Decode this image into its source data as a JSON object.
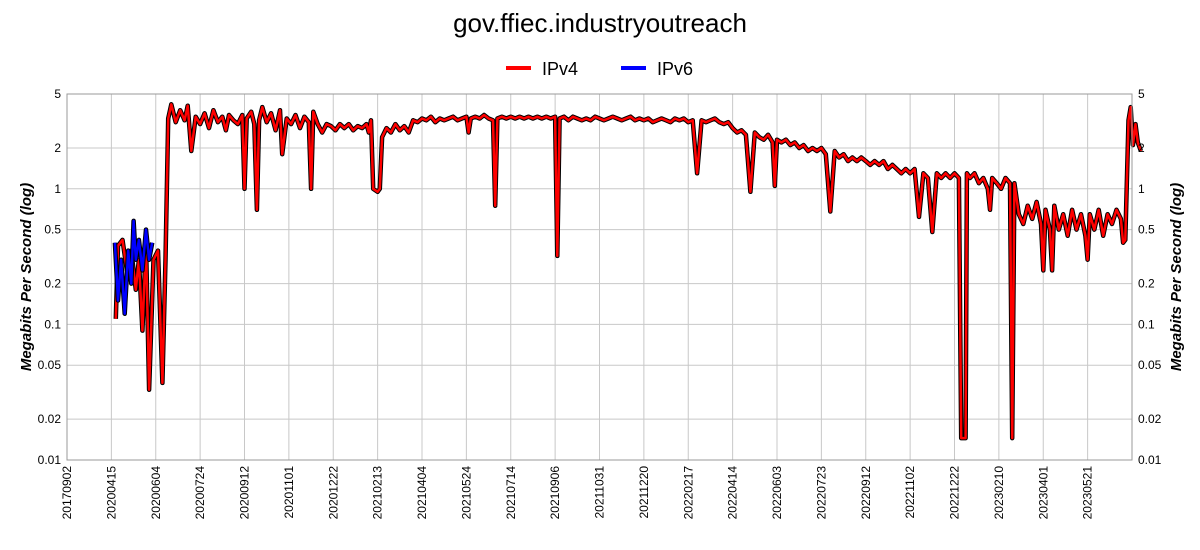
{
  "chart_data": {
    "type": "line",
    "title": "gov.ffiec.industryoutreach",
    "ylabel": "Megabits Per Second (log)",
    "yscale": "log",
    "ylim": [
      0.01,
      5
    ],
    "yticks": [
      5,
      2,
      1,
      0.5,
      0.2,
      0.1,
      0.05,
      0.02,
      0.01
    ],
    "ytick_labels": [
      "5",
      "2",
      "1",
      "0.5",
      "0.2",
      "0.1",
      "0.05",
      "0.02",
      "0.01"
    ],
    "xticks": [
      "20170902",
      "20200415",
      "20200604",
      "20200724",
      "20200912",
      "20201101",
      "20201222",
      "20210213",
      "20210404",
      "20210524",
      "20210714",
      "20210906",
      "20211031",
      "20211220",
      "20220217",
      "20220414",
      "20220603",
      "20220723",
      "20220912",
      "20221102",
      "20221222",
      "20230210",
      "20230401",
      "20230521"
    ],
    "grid": true,
    "legend": "top-center",
    "series": [
      {
        "name": "IPv4",
        "color": "#ff0000",
        "points": [
          [
            1.1,
            0.11
          ],
          [
            1.15,
            0.38
          ],
          [
            1.25,
            0.42
          ],
          [
            1.35,
            0.25
          ],
          [
            1.45,
            0.35
          ],
          [
            1.55,
            0.18
          ],
          [
            1.62,
            0.3
          ],
          [
            1.7,
            0.09
          ],
          [
            1.78,
            0.4
          ],
          [
            1.85,
            0.033
          ],
          [
            1.95,
            0.3
          ],
          [
            2.05,
            0.35
          ],
          [
            2.15,
            0.037
          ],
          [
            2.22,
            0.3
          ],
          [
            2.28,
            3.3
          ],
          [
            2.35,
            4.2
          ],
          [
            2.45,
            3.1
          ],
          [
            2.55,
            3.8
          ],
          [
            2.65,
            3.2
          ],
          [
            2.72,
            4.1
          ],
          [
            2.8,
            1.9
          ],
          [
            2.9,
            3.4
          ],
          [
            3.0,
            3.0
          ],
          [
            3.1,
            3.6
          ],
          [
            3.2,
            2.8
          ],
          [
            3.3,
            3.8
          ],
          [
            3.4,
            3.1
          ],
          [
            3.5,
            3.4
          ],
          [
            3.58,
            2.7
          ],
          [
            3.65,
            3.5
          ],
          [
            3.75,
            3.2
          ],
          [
            3.85,
            3.0
          ],
          [
            3.95,
            3.5
          ],
          [
            4.0,
            1.0
          ],
          [
            4.05,
            3.3
          ],
          [
            4.15,
            3.7
          ],
          [
            4.22,
            3.0
          ],
          [
            4.28,
            0.7
          ],
          [
            4.33,
            3.2
          ],
          [
            4.4,
            4.0
          ],
          [
            4.5,
            3.1
          ],
          [
            4.6,
            3.6
          ],
          [
            4.7,
            2.7
          ],
          [
            4.8,
            3.8
          ],
          [
            4.85,
            1.8
          ],
          [
            4.95,
            3.3
          ],
          [
            5.05,
            3.0
          ],
          [
            5.15,
            3.5
          ],
          [
            5.25,
            2.8
          ],
          [
            5.35,
            3.4
          ],
          [
            5.45,
            3.1
          ],
          [
            5.5,
            1.0
          ],
          [
            5.55,
            3.7
          ],
          [
            5.65,
            3.0
          ],
          [
            5.75,
            2.6
          ],
          [
            5.85,
            3.0
          ],
          [
            5.95,
            2.9
          ],
          [
            6.05,
            2.7
          ],
          [
            6.15,
            3.0
          ],
          [
            6.25,
            2.8
          ],
          [
            6.35,
            3.0
          ],
          [
            6.45,
            2.7
          ],
          [
            6.55,
            2.9
          ],
          [
            6.65,
            2.8
          ],
          [
            6.75,
            3.0
          ],
          [
            6.8,
            2.6
          ],
          [
            6.85,
            3.2
          ],
          [
            6.9,
            1.0
          ],
          [
            7.0,
            0.95
          ],
          [
            7.05,
            1.0
          ],
          [
            7.1,
            2.4
          ],
          [
            7.2,
            2.8
          ],
          [
            7.3,
            2.6
          ],
          [
            7.4,
            3.0
          ],
          [
            7.5,
            2.7
          ],
          [
            7.6,
            2.9
          ],
          [
            7.7,
            2.6
          ],
          [
            7.8,
            3.2
          ],
          [
            7.9,
            3.1
          ],
          [
            8.0,
            3.3
          ],
          [
            8.1,
            3.2
          ],
          [
            8.2,
            3.4
          ],
          [
            8.3,
            3.1
          ],
          [
            8.4,
            3.3
          ],
          [
            8.5,
            3.2
          ],
          [
            8.6,
            3.3
          ],
          [
            8.7,
            3.4
          ],
          [
            8.8,
            3.2
          ],
          [
            8.9,
            3.3
          ],
          [
            9.0,
            3.4
          ],
          [
            9.05,
            2.6
          ],
          [
            9.1,
            3.3
          ],
          [
            9.2,
            3.4
          ],
          [
            9.3,
            3.3
          ],
          [
            9.4,
            3.5
          ],
          [
            9.5,
            3.3
          ],
          [
            9.6,
            3.2
          ],
          [
            9.65,
            0.75
          ],
          [
            9.7,
            3.3
          ],
          [
            9.8,
            3.4
          ],
          [
            9.9,
            3.3
          ],
          [
            10.0,
            3.4
          ],
          [
            10.1,
            3.3
          ],
          [
            10.2,
            3.4
          ],
          [
            10.3,
            3.3
          ],
          [
            10.4,
            3.4
          ],
          [
            10.5,
            3.3
          ],
          [
            10.6,
            3.4
          ],
          [
            10.7,
            3.3
          ],
          [
            10.8,
            3.4
          ],
          [
            10.9,
            3.3
          ],
          [
            11.0,
            3.4
          ],
          [
            11.05,
            0.32
          ],
          [
            11.1,
            3.3
          ],
          [
            11.2,
            3.4
          ],
          [
            11.3,
            3.2
          ],
          [
            11.4,
            3.4
          ],
          [
            11.5,
            3.3
          ],
          [
            11.6,
            3.2
          ],
          [
            11.7,
            3.3
          ],
          [
            11.8,
            3.2
          ],
          [
            11.9,
            3.4
          ],
          [
            12.0,
            3.3
          ],
          [
            12.1,
            3.2
          ],
          [
            12.2,
            3.3
          ],
          [
            12.3,
            3.4
          ],
          [
            12.4,
            3.3
          ],
          [
            12.5,
            3.2
          ],
          [
            12.6,
            3.3
          ],
          [
            12.7,
            3.4
          ],
          [
            12.8,
            3.2
          ],
          [
            12.9,
            3.3
          ],
          [
            13.0,
            3.2
          ],
          [
            13.1,
            3.3
          ],
          [
            13.2,
            3.1
          ],
          [
            13.3,
            3.2
          ],
          [
            13.4,
            3.3
          ],
          [
            13.5,
            3.2
          ],
          [
            13.6,
            3.1
          ],
          [
            13.7,
            3.3
          ],
          [
            13.8,
            3.2
          ],
          [
            13.9,
            3.3
          ],
          [
            14.0,
            3.1
          ],
          [
            14.1,
            3.2
          ],
          [
            14.2,
            1.3
          ],
          [
            14.3,
            3.2
          ],
          [
            14.4,
            3.1
          ],
          [
            14.5,
            3.2
          ],
          [
            14.6,
            3.3
          ],
          [
            14.7,
            3.1
          ],
          [
            14.8,
            3.0
          ],
          [
            14.9,
            3.1
          ],
          [
            15.0,
            2.8
          ],
          [
            15.1,
            2.6
          ],
          [
            15.2,
            2.7
          ],
          [
            15.3,
            2.5
          ],
          [
            15.4,
            0.95
          ],
          [
            15.5,
            2.6
          ],
          [
            15.6,
            2.4
          ],
          [
            15.7,
            2.3
          ],
          [
            15.8,
            2.5
          ],
          [
            15.9,
            2.2
          ],
          [
            15.95,
            1.05
          ],
          [
            16.0,
            2.3
          ],
          [
            16.1,
            2.2
          ],
          [
            16.2,
            2.3
          ],
          [
            16.3,
            2.1
          ],
          [
            16.4,
            2.2
          ],
          [
            16.5,
            2.0
          ],
          [
            16.6,
            2.1
          ],
          [
            16.7,
            1.9
          ],
          [
            16.8,
            2.0
          ],
          [
            16.9,
            1.9
          ],
          [
            17.0,
            2.0
          ],
          [
            17.1,
            1.8
          ],
          [
            17.2,
            0.68
          ],
          [
            17.3,
            1.9
          ],
          [
            17.4,
            1.7
          ],
          [
            17.5,
            1.8
          ],
          [
            17.6,
            1.6
          ],
          [
            17.7,
            1.7
          ],
          [
            17.8,
            1.6
          ],
          [
            17.9,
            1.7
          ],
          [
            18.0,
            1.6
          ],
          [
            18.1,
            1.5
          ],
          [
            18.2,
            1.6
          ],
          [
            18.3,
            1.5
          ],
          [
            18.4,
            1.6
          ],
          [
            18.5,
            1.4
          ],
          [
            18.6,
            1.5
          ],
          [
            18.7,
            1.4
          ],
          [
            18.8,
            1.3
          ],
          [
            18.9,
            1.4
          ],
          [
            19.0,
            1.3
          ],
          [
            19.1,
            1.4
          ],
          [
            19.2,
            0.62
          ],
          [
            19.3,
            1.3
          ],
          [
            19.4,
            1.2
          ],
          [
            19.5,
            0.48
          ],
          [
            19.6,
            1.3
          ],
          [
            19.7,
            1.2
          ],
          [
            19.8,
            1.3
          ],
          [
            19.9,
            1.2
          ],
          [
            20.0,
            1.3
          ],
          [
            20.1,
            1.2
          ],
          [
            20.15,
            0.0145
          ],
          [
            20.2,
            0.0145
          ],
          [
            20.25,
            0.0145
          ],
          [
            20.28,
            1.3
          ],
          [
            20.35,
            1.2
          ],
          [
            20.45,
            1.3
          ],
          [
            20.55,
            1.1
          ],
          [
            20.65,
            1.2
          ],
          [
            20.75,
            1.0
          ],
          [
            20.8,
            0.7
          ],
          [
            20.85,
            1.2
          ],
          [
            20.95,
            1.1
          ],
          [
            21.05,
            1.0
          ],
          [
            21.15,
            1.2
          ],
          [
            21.25,
            1.1
          ],
          [
            21.3,
            0.0145
          ],
          [
            21.35,
            1.1
          ],
          [
            21.45,
            0.65
          ],
          [
            21.55,
            0.55
          ],
          [
            21.65,
            0.75
          ],
          [
            21.75,
            0.6
          ],
          [
            21.85,
            0.8
          ],
          [
            21.95,
            0.55
          ],
          [
            22.0,
            0.25
          ],
          [
            22.05,
            0.7
          ],
          [
            22.15,
            0.5
          ],
          [
            22.2,
            0.25
          ],
          [
            22.25,
            0.75
          ],
          [
            22.35,
            0.5
          ],
          [
            22.45,
            0.65
          ],
          [
            22.55,
            0.45
          ],
          [
            22.65,
            0.7
          ],
          [
            22.75,
            0.5
          ],
          [
            22.85,
            0.65
          ],
          [
            22.95,
            0.45
          ],
          [
            23.0,
            0.3
          ],
          [
            23.05,
            0.65
          ],
          [
            23.15,
            0.5
          ],
          [
            23.25,
            0.7
          ],
          [
            23.35,
            0.45
          ],
          [
            23.45,
            0.65
          ],
          [
            23.55,
            0.55
          ],
          [
            23.65,
            0.7
          ],
          [
            23.75,
            0.6
          ],
          [
            23.8,
            0.4
          ],
          [
            23.85,
            0.42
          ],
          [
            23.92,
            3.2
          ],
          [
            23.97,
            4.0
          ],
          [
            24.02,
            2.1
          ],
          [
            24.08,
            3.0
          ],
          [
            24.13,
            2.2
          ],
          [
            24.2,
            1.9
          ]
        ]
      },
      {
        "name": "IPv6",
        "color": "#0000ff",
        "points": [
          [
            1.08,
            0.4
          ],
          [
            1.15,
            0.15
          ],
          [
            1.22,
            0.3
          ],
          [
            1.3,
            0.12
          ],
          [
            1.38,
            0.35
          ],
          [
            1.45,
            0.2
          ],
          [
            1.5,
            0.58
          ],
          [
            1.55,
            0.3
          ],
          [
            1.62,
            0.42
          ],
          [
            1.7,
            0.25
          ],
          [
            1.78,
            0.5
          ],
          [
            1.85,
            0.3
          ],
          [
            1.92,
            0.4
          ]
        ]
      }
    ]
  }
}
